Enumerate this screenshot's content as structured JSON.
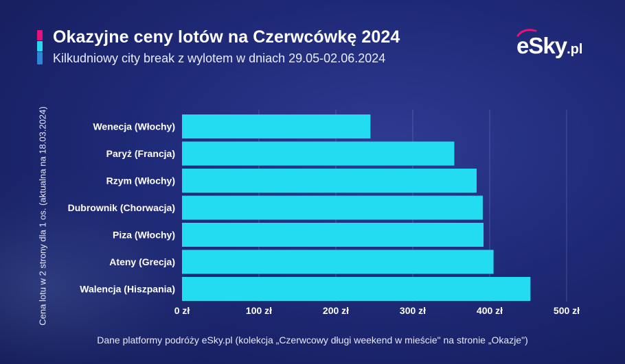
{
  "header": {
    "title": "Okazyjne ceny lotów na Czerwcówkę 2024",
    "subtitle": "Kilkudniowy city break z wylotem w dniach 29.05-02.06.2024",
    "logo_main": "eSky",
    "logo_suffix": ".pl"
  },
  "footer": {
    "source": "Dane platformy podróży eSky.pl (kolekcja „Czerwcowy długi weekend w mieście\" na stronie „Okazje\")"
  },
  "colors": {
    "bar": "#23dcf2",
    "grid": "rgba(255,255,255,0.18)",
    "accent_pink": "#e6127a",
    "accent_cyan": "#2bd6f0",
    "accent_blue": "#2f86d9"
  },
  "chart_data": {
    "type": "bar",
    "orientation": "horizontal",
    "title": "Okazyjne ceny lotów na Czerwcówkę 2024",
    "subtitle": "Kilkudniowy city break z wylotem w dniach 29.05-02.06.2024",
    "ylabel": "Cena lotu w 2 strony dla 1 os. (aktualna na 18.03.2024)",
    "xlabel": "",
    "categories": [
      "Wenecja (Włochy)",
      "Paryż (Francja)",
      "Rzym (Włochy)",
      "Dubrownik (Chorwacja)",
      "Piza (Włochy)",
      "Ateny (Grecja)",
      "Walencja (Hiszpania)"
    ],
    "values": [
      245,
      354,
      383,
      391,
      392,
      405,
      453
    ],
    "xlim": [
      0,
      500
    ],
    "ticks": [
      0,
      100,
      200,
      300,
      400,
      500
    ],
    "tick_labels": [
      "0 zł",
      "100 zł",
      "200 zł",
      "300 zł",
      "400 zł",
      "500 zł"
    ],
    "grid": "vertical",
    "legend": "none"
  }
}
